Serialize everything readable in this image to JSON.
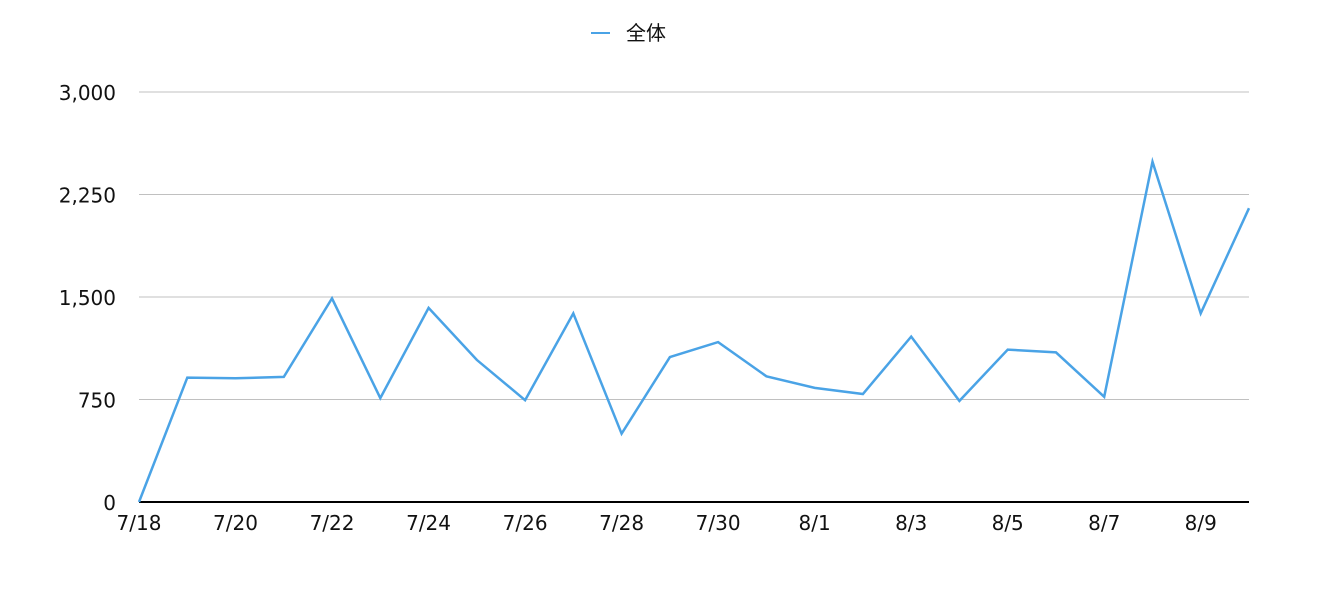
{
  "chart_data": {
    "type": "line",
    "title": "",
    "xlabel": "",
    "ylabel": "",
    "legend": {
      "position": "top-center"
    },
    "grid": true,
    "ylim": [
      0,
      3000
    ],
    "yticks": [
      0,
      750,
      1500,
      2250,
      3000
    ],
    "ytick_labels": [
      "0",
      "750",
      "1,500",
      "2,250",
      "3,000"
    ],
    "x": [
      "7/18",
      "7/19",
      "7/20",
      "7/21",
      "7/22",
      "7/23",
      "7/24",
      "7/25",
      "7/26",
      "7/27",
      "7/28",
      "7/29",
      "7/30",
      "7/31",
      "8/1",
      "8/2",
      "8/3",
      "8/4",
      "8/5",
      "8/6",
      "8/7",
      "8/8",
      "8/9",
      "8/10"
    ],
    "xtick_labels": [
      "7/18",
      "7/20",
      "7/22",
      "7/24",
      "7/26",
      "7/28",
      "7/30",
      "8/1",
      "8/3",
      "8/5",
      "8/7",
      "8/9"
    ],
    "series": [
      {
        "name": "全体",
        "color": "#4aa3e6",
        "values": [
          0,
          910,
          905,
          915,
          1490,
          760,
          1420,
          1040,
          745,
          1380,
          500,
          1060,
          1170,
          920,
          835,
          790,
          1210,
          740,
          1115,
          1095,
          770,
          2490,
          1380,
          2150
        ]
      }
    ]
  }
}
